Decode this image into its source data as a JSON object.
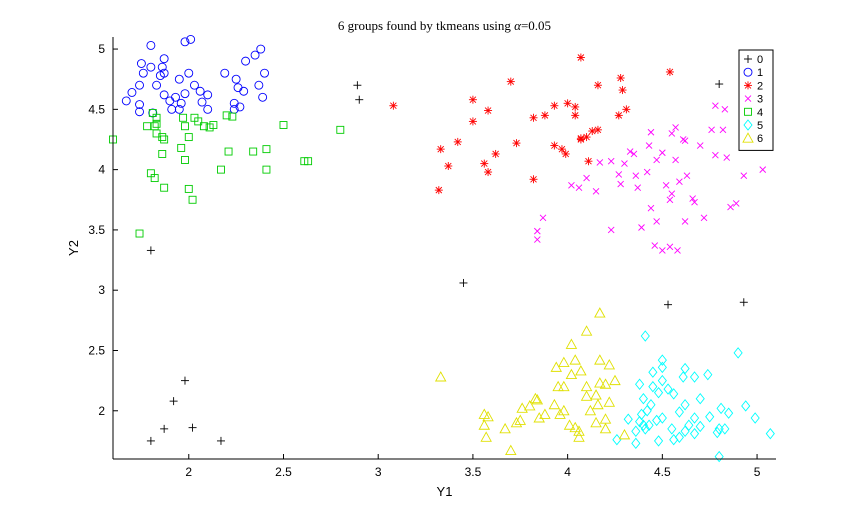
{
  "chart_data": {
    "type": "scatter",
    "title": "6 groups found by tkmeans using α=0.05",
    "title_prefix": "6 groups found by tkmeans using ",
    "title_alpha": "α",
    "title_suffix": "=0.05",
    "xlabel": "Y1",
    "ylabel": "Y2",
    "xlim": [
      1.6,
      5.1
    ],
    "ylim": [
      1.6,
      5.1
    ],
    "xticks": [
      2,
      2.5,
      3,
      3.5,
      4,
      4.5,
      5
    ],
    "xtick_labels": [
      "2",
      "2.5",
      "3",
      "3.5",
      "4",
      "4.5",
      "5"
    ],
    "yticks": [
      2,
      2.5,
      3,
      3.5,
      4,
      4.5,
      5
    ],
    "ytick_labels": [
      "2",
      "2.5",
      "3",
      "3.5",
      "4",
      "4.5",
      "5"
    ],
    "grid": false,
    "legend_position": "top-right",
    "series": [
      {
        "name": "0",
        "marker": "plus",
        "color": "#000000",
        "points": [
          [
            2.89,
            4.7
          ],
          [
            2.9,
            4.58
          ],
          [
            4.8,
            4.71
          ],
          [
            1.8,
            3.33
          ],
          [
            3.45,
            3.06
          ],
          [
            4.53,
            2.88
          ],
          [
            4.93,
            2.9
          ],
          [
            1.98,
            2.25
          ],
          [
            1.92,
            2.08
          ],
          [
            1.87,
            1.85
          ],
          [
            2.02,
            1.86
          ],
          [
            1.8,
            1.75
          ],
          [
            2.17,
            1.75
          ]
        ]
      },
      {
        "name": "1",
        "marker": "circle",
        "color": "#0000ff",
        "points": [
          [
            1.8,
            5.03
          ],
          [
            2.01,
            5.08
          ],
          [
            1.98,
            5.06
          ],
          [
            2.38,
            5.0
          ],
          [
            2.35,
            4.95
          ],
          [
            1.87,
            4.92
          ],
          [
            2.3,
            4.9
          ],
          [
            1.75,
            4.88
          ],
          [
            1.8,
            4.85
          ],
          [
            1.86,
            4.85
          ],
          [
            1.87,
            4.8
          ],
          [
            1.76,
            4.8
          ],
          [
            2.0,
            4.8
          ],
          [
            1.85,
            4.78
          ],
          [
            2.19,
            4.8
          ],
          [
            2.4,
            4.8
          ],
          [
            1.95,
            4.75
          ],
          [
            2.25,
            4.75
          ],
          [
            2.37,
            4.7
          ],
          [
            1.74,
            4.7
          ],
          [
            1.83,
            4.7
          ],
          [
            2.03,
            4.7
          ],
          [
            2.26,
            4.68
          ],
          [
            2.06,
            4.65
          ],
          [
            2.29,
            4.65
          ],
          [
            1.7,
            4.64
          ],
          [
            1.98,
            4.63
          ],
          [
            2.1,
            4.62
          ],
          [
            1.87,
            4.62
          ],
          [
            1.93,
            4.6
          ],
          [
            2.39,
            4.6
          ],
          [
            1.67,
            4.57
          ],
          [
            1.9,
            4.57
          ],
          [
            2.07,
            4.56
          ],
          [
            1.96,
            4.55
          ],
          [
            2.24,
            4.55
          ],
          [
            1.74,
            4.54
          ],
          [
            2.27,
            4.52
          ],
          [
            1.91,
            4.5
          ],
          [
            1.95,
            4.5
          ],
          [
            1.74,
            4.48
          ],
          [
            2.1,
            4.5
          ],
          [
            2.24,
            4.5
          ],
          [
            1.81,
            4.47
          ]
        ]
      },
      {
        "name": "2",
        "marker": "star",
        "color": "#ff0000",
        "points": [
          [
            4.07,
            4.93
          ],
          [
            4.54,
            4.81
          ],
          [
            3.7,
            4.73
          ],
          [
            4.28,
            4.76
          ],
          [
            4.29,
            4.66
          ],
          [
            4.16,
            4.7
          ],
          [
            3.5,
            4.58
          ],
          [
            4.0,
            4.55
          ],
          [
            3.93,
            4.53
          ],
          [
            4.04,
            4.52
          ],
          [
            3.58,
            4.49
          ],
          [
            4.31,
            4.5
          ],
          [
            3.08,
            4.53
          ],
          [
            4.27,
            4.45
          ],
          [
            3.88,
            4.45
          ],
          [
            4.04,
            4.45
          ],
          [
            3.82,
            4.43
          ],
          [
            3.5,
            4.4
          ],
          [
            4.16,
            4.33
          ],
          [
            4.13,
            4.32
          ],
          [
            4.1,
            4.27
          ],
          [
            4.07,
            4.25
          ],
          [
            4.07,
            4.26
          ],
          [
            3.42,
            4.23
          ],
          [
            3.73,
            4.22
          ],
          [
            3.93,
            4.2
          ],
          [
            3.97,
            4.17
          ],
          [
            3.33,
            4.17
          ],
          [
            3.99,
            4.13
          ],
          [
            3.62,
            4.13
          ],
          [
            4.11,
            4.07
          ],
          [
            3.56,
            4.05
          ],
          [
            3.37,
            4.03
          ],
          [
            3.58,
            3.98
          ],
          [
            3.82,
            3.92
          ],
          [
            3.32,
            3.83
          ]
        ]
      },
      {
        "name": "3",
        "marker": "x",
        "color": "#ff00ff",
        "points": [
          [
            4.78,
            4.53
          ],
          [
            4.83,
            4.5
          ],
          [
            4.57,
            4.35
          ],
          [
            4.44,
            4.31
          ],
          [
            4.55,
            4.3
          ],
          [
            4.82,
            4.33
          ],
          [
            4.76,
            4.33
          ],
          [
            4.61,
            4.25
          ],
          [
            4.62,
            4.24
          ],
          [
            4.43,
            4.2
          ],
          [
            4.7,
            4.2
          ],
          [
            4.33,
            4.15
          ],
          [
            4.5,
            4.14
          ],
          [
            4.35,
            4.13
          ],
          [
            4.78,
            4.12
          ],
          [
            4.84,
            4.1
          ],
          [
            4.47,
            4.08
          ],
          [
            4.57,
            4.08
          ],
          [
            4.17,
            4.06
          ],
          [
            4.23,
            4.07
          ],
          [
            4.3,
            4.05
          ],
          [
            5.03,
            4.0
          ],
          [
            4.42,
            3.98
          ],
          [
            4.27,
            3.96
          ],
          [
            4.36,
            3.95
          ],
          [
            4.63,
            3.95
          ],
          [
            4.93,
            3.95
          ],
          [
            4.1,
            3.93
          ],
          [
            4.59,
            3.9
          ],
          [
            4.02,
            3.87
          ],
          [
            4.28,
            3.88
          ],
          [
            4.52,
            3.87
          ],
          [
            4.06,
            3.85
          ],
          [
            4.37,
            3.85
          ],
          [
            4.15,
            3.82
          ],
          [
            4.55,
            3.8
          ],
          [
            4.66,
            3.76
          ],
          [
            4.67,
            3.73
          ],
          [
            4.54,
            3.75
          ],
          [
            4.89,
            3.72
          ],
          [
            4.86,
            3.69
          ],
          [
            4.44,
            3.68
          ],
          [
            4.72,
            3.6
          ],
          [
            4.47,
            3.57
          ],
          [
            4.62,
            3.57
          ],
          [
            3.87,
            3.6
          ],
          [
            4.39,
            3.52
          ],
          [
            4.23,
            3.5
          ],
          [
            3.84,
            3.49
          ],
          [
            3.84,
            3.42
          ],
          [
            4.46,
            3.37
          ],
          [
            4.54,
            3.36
          ],
          [
            4.5,
            3.33
          ],
          [
            4.58,
            3.33
          ]
        ]
      },
      {
        "name": "4",
        "marker": "square",
        "color": "#00cc00",
        "points": [
          [
            1.81,
            4.47
          ],
          [
            2.2,
            4.45
          ],
          [
            2.23,
            4.44
          ],
          [
            1.83,
            4.43
          ],
          [
            1.97,
            4.43
          ],
          [
            2.03,
            4.43
          ],
          [
            2.05,
            4.4
          ],
          [
            1.83,
            4.38
          ],
          [
            1.82,
            4.36
          ],
          [
            1.78,
            4.36
          ],
          [
            1.98,
            4.36
          ],
          [
            2.08,
            4.36
          ],
          [
            2.11,
            4.35
          ],
          [
            2.13,
            4.37
          ],
          [
            2.5,
            4.37
          ],
          [
            2.8,
            4.33
          ],
          [
            1.83,
            4.3
          ],
          [
            1.86,
            4.27
          ],
          [
            1.87,
            4.25
          ],
          [
            1.6,
            4.25
          ],
          [
            2.0,
            4.27
          ],
          [
            1.96,
            4.18
          ],
          [
            2.41,
            4.17
          ],
          [
            2.21,
            4.15
          ],
          [
            2.34,
            4.15
          ],
          [
            1.86,
            4.13
          ],
          [
            1.98,
            4.08
          ],
          [
            2.61,
            4.07
          ],
          [
            2.63,
            4.07
          ],
          [
            2.17,
            4.0
          ],
          [
            2.41,
            4.0
          ],
          [
            1.8,
            3.97
          ],
          [
            1.82,
            3.93
          ],
          [
            1.87,
            3.85
          ],
          [
            2.0,
            3.84
          ],
          [
            2.02,
            3.75
          ],
          [
            1.74,
            3.47
          ]
        ]
      },
      {
        "name": "5",
        "marker": "diamond",
        "color": "#00ffff",
        "points": [
          [
            4.41,
            2.62
          ],
          [
            4.9,
            2.48
          ],
          [
            4.5,
            2.42
          ],
          [
            4.5,
            2.36
          ],
          [
            4.45,
            2.32
          ],
          [
            4.62,
            2.35
          ],
          [
            4.61,
            2.28
          ],
          [
            4.67,
            2.28
          ],
          [
            4.74,
            2.3
          ],
          [
            4.5,
            2.25
          ],
          [
            4.38,
            2.22
          ],
          [
            4.45,
            2.2
          ],
          [
            4.53,
            2.18
          ],
          [
            4.48,
            2.15
          ],
          [
            4.56,
            2.14
          ],
          [
            4.4,
            2.1
          ],
          [
            4.7,
            2.1
          ],
          [
            4.44,
            2.05
          ],
          [
            4.62,
            2.05
          ],
          [
            4.94,
            2.04
          ],
          [
            4.81,
            2.02
          ],
          [
            4.42,
            2.0
          ],
          [
            4.59,
            1.99
          ],
          [
            4.85,
            1.98
          ],
          [
            4.39,
            1.97
          ],
          [
            4.5,
            1.94
          ],
          [
            4.75,
            1.95
          ],
          [
            4.67,
            1.94
          ],
          [
            4.99,
            1.94
          ],
          [
            4.32,
            1.93
          ],
          [
            4.47,
            1.92
          ],
          [
            4.38,
            1.91
          ],
          [
            4.4,
            1.88
          ],
          [
            4.43,
            1.88
          ],
          [
            4.64,
            1.88
          ],
          [
            4.7,
            1.87
          ],
          [
            4.55,
            1.85
          ],
          [
            4.41,
            1.85
          ],
          [
            4.8,
            1.85
          ],
          [
            4.83,
            1.85
          ],
          [
            4.36,
            1.83
          ],
          [
            4.62,
            1.83
          ],
          [
            5.07,
            1.81
          ],
          [
            4.79,
            1.82
          ],
          [
            4.67,
            1.81
          ],
          [
            4.59,
            1.78
          ],
          [
            4.56,
            1.76
          ],
          [
            4.26,
            1.76
          ],
          [
            4.48,
            1.75
          ],
          [
            4.36,
            1.73
          ],
          [
            4.8,
            1.62
          ]
        ]
      },
      {
        "name": "6",
        "marker": "triangle",
        "color": "#e0e000",
        "points": [
          [
            4.17,
            2.81
          ],
          [
            4.1,
            2.66
          ],
          [
            4.02,
            2.55
          ],
          [
            4.04,
            2.42
          ],
          [
            4.17,
            2.42
          ],
          [
            3.98,
            2.4
          ],
          [
            4.22,
            2.38
          ],
          [
            3.94,
            2.36
          ],
          [
            4.07,
            2.33
          ],
          [
            4.02,
            2.3
          ],
          [
            3.33,
            2.28
          ],
          [
            4.25,
            2.25
          ],
          [
            4.17,
            2.23
          ],
          [
            4.2,
            2.22
          ],
          [
            3.98,
            2.2
          ],
          [
            4.1,
            2.2
          ],
          [
            3.95,
            2.2
          ],
          [
            4.15,
            2.13
          ],
          [
            4.1,
            2.12
          ],
          [
            3.83,
            2.1
          ],
          [
            3.84,
            2.09
          ],
          [
            4.22,
            2.07
          ],
          [
            4.16,
            2.05
          ],
          [
            3.93,
            2.05
          ],
          [
            3.8,
            2.04
          ],
          [
            3.76,
            2.02
          ],
          [
            4.12,
            2.0
          ],
          [
            3.98,
            2.0
          ],
          [
            3.96,
            1.97
          ],
          [
            3.88,
            1.97
          ],
          [
            3.56,
            1.97
          ],
          [
            3.58,
            1.95
          ],
          [
            3.85,
            1.94
          ],
          [
            4.2,
            1.93
          ],
          [
            3.75,
            1.92
          ],
          [
            3.73,
            1.9
          ],
          [
            4.15,
            1.9
          ],
          [
            4.01,
            1.88
          ],
          [
            3.56,
            1.88
          ],
          [
            4.04,
            1.86
          ],
          [
            4.2,
            1.85
          ],
          [
            3.67,
            1.85
          ],
          [
            4.06,
            1.83
          ],
          [
            4.3,
            1.8
          ],
          [
            3.57,
            1.78
          ],
          [
            4.06,
            1.78
          ],
          [
            3.7,
            1.67
          ]
        ]
      }
    ]
  }
}
